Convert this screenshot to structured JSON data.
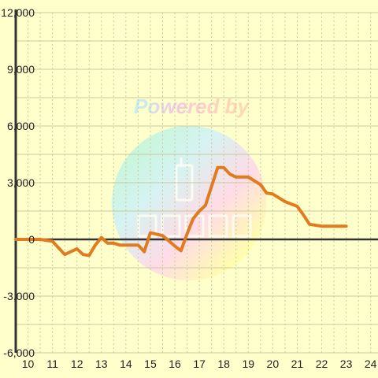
{
  "watermark": {
    "text": "Powered by"
  },
  "chart_data": {
    "type": "line",
    "title": "",
    "xlabel": "",
    "ylabel": "",
    "xlim": [
      9.5,
      24.3
    ],
    "ylim": [
      -6000,
      12000
    ],
    "grid": true,
    "legend": "none",
    "x_ticks": [
      "10",
      "11",
      "12",
      "13",
      "14",
      "15",
      "16",
      "17",
      "18",
      "19",
      "20",
      "21",
      "22",
      "23",
      "24"
    ],
    "y_ticks": [
      "-6,000",
      "-3,000",
      "0",
      "3,000",
      "6,000",
      "9,000",
      "12,000"
    ],
    "series": [
      {
        "color": "#e07b1f",
        "x": [
          9.5,
          10,
          10.5,
          11,
          11.5,
          11.75,
          12,
          12.25,
          12.5,
          12.75,
          13,
          13.25,
          13.5,
          13.75,
          14,
          14.5,
          14.75,
          15,
          15.5,
          16,
          16.25,
          16.5,
          16.75,
          17,
          17.25,
          17.5,
          17.75,
          18,
          18.25,
          18.5,
          18.75,
          19,
          19.5,
          19.75,
          20,
          20.5,
          21,
          21.25,
          21.5,
          22,
          22.5,
          23
        ],
        "y": [
          0,
          0,
          0,
          -100,
          -800,
          -650,
          -500,
          -800,
          -850,
          -300,
          100,
          -200,
          -200,
          -300,
          -300,
          -300,
          -650,
          350,
          200,
          -350,
          -600,
          300,
          1100,
          1500,
          1800,
          2800,
          3800,
          3800,
          3450,
          3300,
          3300,
          3300,
          2900,
          2450,
          2400,
          2000,
          1750,
          1300,
          800,
          700,
          700,
          700
        ]
      }
    ]
  },
  "colors": {
    "background": "#ffffcc",
    "grid": "#c9c9a0",
    "axis": "#333333",
    "line": "#e07b1f"
  }
}
